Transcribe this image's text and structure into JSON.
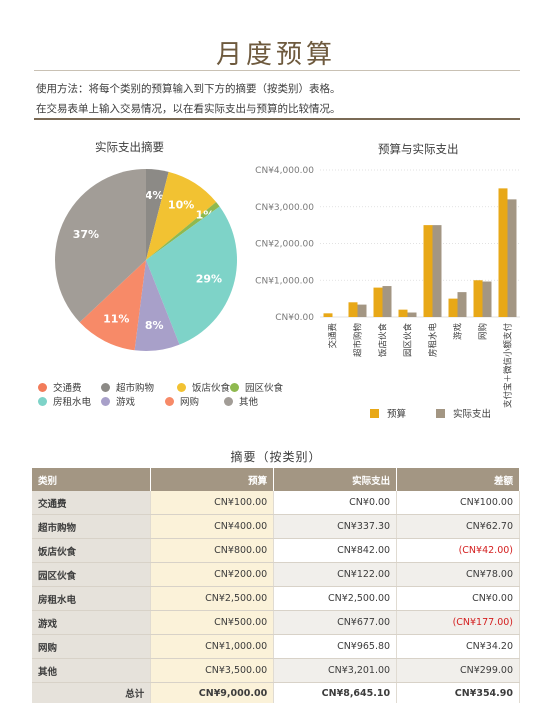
{
  "title": "月度预算",
  "instructions": [
    "使用方法：将每个类别的预算输入到下方的摘要（按类别）表格。",
    "在交易表单上输入交易情况，以在看实际支出与预算的比较情况。"
  ],
  "pie_chart": {
    "title": "实际支出摘要",
    "slices": [
      {
        "name": "交通费",
        "percent": 0,
        "label": "",
        "color": "#f27c5a"
      },
      {
        "name": "超市购物",
        "percent": 4,
        "label": "4%",
        "color": "#8c8a86"
      },
      {
        "name": "饭店伙食",
        "percent": 10,
        "label": "10%",
        "color": "#f2c232"
      },
      {
        "name": "园区伙食",
        "percent": 1,
        "label": "1%",
        "color": "#8fb94f"
      },
      {
        "name": "房租水电",
        "percent": 29,
        "label": "29%",
        "color": "#7ed3c8"
      },
      {
        "name": "游戏",
        "percent": 8,
        "label": "8%",
        "color": "#a8a0c9"
      },
      {
        "name": "网购",
        "percent": 11,
        "label": "11%",
        "color": "#f78a68"
      },
      {
        "name": "其他",
        "percent": 37,
        "label": "37%",
        "color": "#a29d97"
      }
    ]
  },
  "legend": [
    {
      "name": "交通费",
      "color": "#f27c5a"
    },
    {
      "name": "超市购物",
      "color": "#8c8a86"
    },
    {
      "name": "饭店伙食",
      "color": "#f2c232"
    },
    {
      "name": "园区伙食",
      "color": "#8fb94f"
    },
    {
      "name": "房租水电",
      "color": "#7ed3c8"
    },
    {
      "name": "游戏",
      "color": "#a8a0c9"
    },
    {
      "name": "网购",
      "color": "#f78a68"
    },
    {
      "name": "其他",
      "color": "#a29d97"
    }
  ],
  "chart_data": {
    "type": "bar",
    "title": "预算与实际支出",
    "categories": [
      "交通费",
      "超市购物",
      "饭店伙食",
      "园区伙食",
      "房租水电",
      "游戏",
      "网购",
      "支付宝＋微信小额支付"
    ],
    "series": [
      {
        "name": "预算",
        "color": "#e8a817",
        "values": [
          100,
          400,
          800,
          200,
          2500,
          500,
          1000,
          3500
        ]
      },
      {
        "name": "实际支出",
        "color": "#a39683",
        "values": [
          0,
          337.3,
          842,
          122,
          2500,
          677,
          965.8,
          3201
        ]
      }
    ],
    "ylim": [
      0,
      4000
    ],
    "yticks": [
      "CN¥0.00",
      "CN¥1,000.00",
      "CN¥2,000.00",
      "CN¥3,000.00",
      "CN¥4,000.00"
    ],
    "legend_position": "bottom"
  },
  "summary": {
    "title": "摘要（按类别）",
    "headers": [
      "类别",
      "预算",
      "实际支出",
      "差额"
    ],
    "rows": [
      {
        "cat": "交通费",
        "budget": "CN¥100.00",
        "actual": "CN¥0.00",
        "diff": "CN¥100.00",
        "neg": false
      },
      {
        "cat": "超市购物",
        "budget": "CN¥400.00",
        "actual": "CN¥337.30",
        "diff": "CN¥62.70",
        "neg": false
      },
      {
        "cat": "饭店伙食",
        "budget": "CN¥800.00",
        "actual": "CN¥842.00",
        "diff": "(CN¥42.00)",
        "neg": true
      },
      {
        "cat": "园区伙食",
        "budget": "CN¥200.00",
        "actual": "CN¥122.00",
        "diff": "CN¥78.00",
        "neg": false
      },
      {
        "cat": "房租水电",
        "budget": "CN¥2,500.00",
        "actual": "CN¥2,500.00",
        "diff": "CN¥0.00",
        "neg": false
      },
      {
        "cat": "游戏",
        "budget": "CN¥500.00",
        "actual": "CN¥677.00",
        "diff": "(CN¥177.00)",
        "neg": true
      },
      {
        "cat": "网购",
        "budget": "CN¥1,000.00",
        "actual": "CN¥965.80",
        "diff": "CN¥34.20",
        "neg": false
      },
      {
        "cat": "其他",
        "budget": "CN¥3,500.00",
        "actual": "CN¥3,201.00",
        "diff": "CN¥299.00",
        "neg": false
      }
    ],
    "total": {
      "cat": "总计",
      "budget": "CN¥9,000.00",
      "actual": "CN¥8,645.10",
      "diff": "CN¥354.90"
    }
  }
}
